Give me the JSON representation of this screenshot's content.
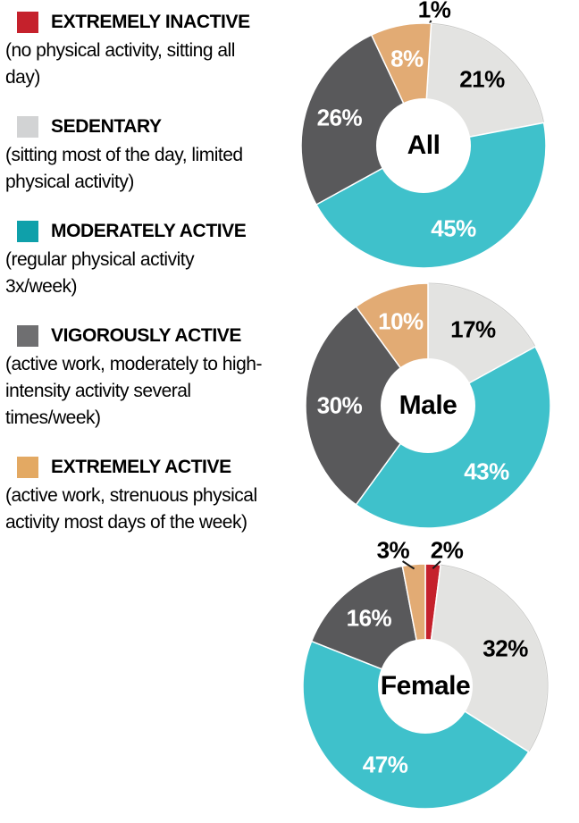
{
  "legend": {
    "items": [
      {
        "label": "EXTREMELY INACTIVE",
        "description": "(no physical activity, sitting all day)",
        "swatch_color": "#C5212C"
      },
      {
        "label": "SEDENTARY",
        "description": "(sitting most of the day, limited physical activity)",
        "swatch_color": "#D2D3D4"
      },
      {
        "label": "MODERATELY ACTIVE",
        "description": "(regular physical activity 3x/week)",
        "swatch_color": "#0FA0AA"
      },
      {
        "label": "VIGOROUSLY ACTIVE",
        "description": "(active work, moderately to high-intensity activity several times/week)",
        "swatch_color": "#6F6F71"
      },
      {
        "label": "EXTREMELY ACTIVE",
        "description": "(active work, strenuous physical activity most days of the week)",
        "swatch_color": "#E3A963"
      }
    ]
  },
  "chart_data": [
    {
      "type": "pie",
      "subtype": "donut",
      "center_label": "All",
      "unit": "%",
      "start_angle_deg": 0,
      "direction": "clockwise",
      "slices": [
        {
          "category": "Extremely inactive",
          "value": 1,
          "label": "1%",
          "color": "#C5212C",
          "label_color": "#000000"
        },
        {
          "category": "Sedentary",
          "value": 21,
          "label": "21%",
          "color": "#E3E3E1",
          "label_color": "#000000"
        },
        {
          "category": "Moderately active",
          "value": 45,
          "label": "45%",
          "color": "#3FC1CB",
          "label_color": "#FFFFFF"
        },
        {
          "category": "Vigorously active",
          "value": 26,
          "label": "26%",
          "color": "#59595B",
          "label_color": "#FFFFFF"
        },
        {
          "category": "Extremely active",
          "value": 8,
          "label": "8%",
          "color": "#E2AB74",
          "label_color": "#FFFFFF"
        }
      ]
    },
    {
      "type": "pie",
      "subtype": "donut",
      "center_label": "Male",
      "unit": "%",
      "start_angle_deg": 0,
      "direction": "clockwise",
      "slices": [
        {
          "category": "Extremely inactive",
          "value": 0,
          "label": "",
          "color": "#C5212C",
          "label_color": "#000000"
        },
        {
          "category": "Sedentary",
          "value": 17,
          "label": "17%",
          "color": "#E3E3E1",
          "label_color": "#000000"
        },
        {
          "category": "Moderately active",
          "value": 43,
          "label": "43%",
          "color": "#3FC1CB",
          "label_color": "#FFFFFF"
        },
        {
          "category": "Vigorously active",
          "value": 30,
          "label": "30%",
          "color": "#59595B",
          "label_color": "#FFFFFF"
        },
        {
          "category": "Extremely active",
          "value": 10,
          "label": "10%",
          "color": "#E2AB74",
          "label_color": "#FFFFFF"
        }
      ]
    },
    {
      "type": "pie",
      "subtype": "donut",
      "center_label": "Female",
      "unit": "%",
      "start_angle_deg": 0,
      "direction": "clockwise",
      "slices": [
        {
          "category": "Extremely inactive",
          "value": 2,
          "label": "2%",
          "color": "#C5212C",
          "label_color": "#000000"
        },
        {
          "category": "Sedentary",
          "value": 32,
          "label": "32%",
          "color": "#E3E3E1",
          "label_color": "#000000"
        },
        {
          "category": "Moderately active",
          "value": 47,
          "label": "47%",
          "color": "#3FC1CB",
          "label_color": "#FFFFFF"
        },
        {
          "category": "Vigorously active",
          "value": 16,
          "label": "16%",
          "color": "#59595B",
          "label_color": "#FFFFFF"
        },
        {
          "category": "Extremely active",
          "value": 3,
          "label": "3%",
          "color": "#E2AB74",
          "label_color": "#000000"
        }
      ]
    }
  ],
  "layout_hint": {
    "leader_line_color": "#1A1A1A",
    "sedentary_rim_color": "#C9C9C7",
    "hole_color": "#FFFFFF"
  }
}
